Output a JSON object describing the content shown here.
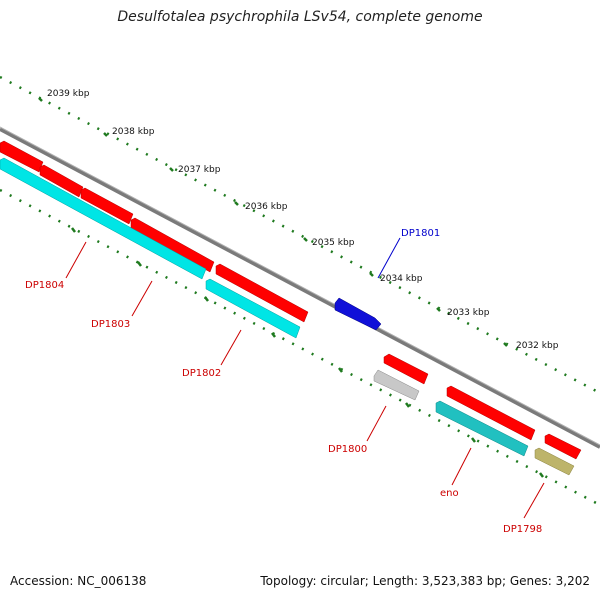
{
  "title": "Desulfotalea psychrophila LSv54, complete genome",
  "footer": {
    "accession": "Accession: NC_006138",
    "summary": "Topology: circular; Length: 3,523,383 bp; Genes: 3,202"
  },
  "colors": {
    "backbone": "#7a7a7a",
    "tick": "#1f7a1f",
    "label_red": "#cc0000",
    "label_blue": "#0000cc",
    "cds": "#ff0000",
    "rna": "#00e5e5",
    "rna_dark": "#21c0c0",
    "selected": "#1010d8",
    "pseudo": "#c8c8c8",
    "other": "#bdb46a"
  },
  "scale_labels": [
    {
      "text": "2039 kbp"
    },
    {
      "text": "2038 kbp"
    },
    {
      "text": "2037 kbp"
    },
    {
      "text": "2036 kbp"
    },
    {
      "text": "2035 kbp"
    },
    {
      "text": "2034 kbp"
    },
    {
      "text": "2033 kbp"
    },
    {
      "text": "2032 kbp"
    }
  ],
  "gene_labels": [
    {
      "text": "DP1804",
      "color": "label_red"
    },
    {
      "text": "DP1803",
      "color": "label_red"
    },
    {
      "text": "DP1802",
      "color": "label_red"
    },
    {
      "text": "DP1801",
      "color": "label_blue"
    },
    {
      "text": "DP1800",
      "color": "label_red"
    },
    {
      "text": "eno",
      "color": "label_red"
    },
    {
      "text": "DP1798",
      "color": "label_red"
    }
  ]
}
